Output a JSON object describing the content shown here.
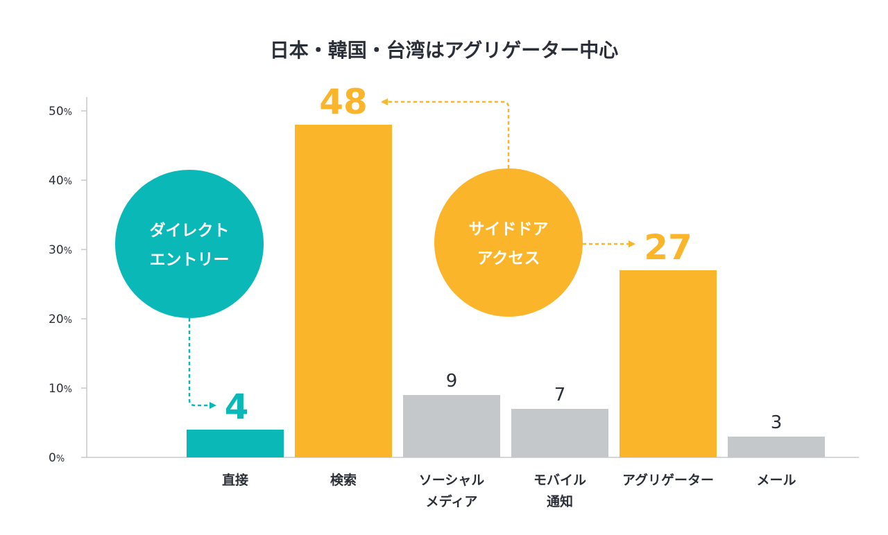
{
  "chart_data": {
    "type": "bar",
    "title": "日本・韓国・台湾はアグリゲーター中心",
    "categories": [
      "直接",
      "検索",
      "ソーシャル\nメディア",
      "モバイル\n通知",
      "アグリゲーター",
      "メール"
    ],
    "values": [
      4,
      48,
      9,
      7,
      27,
      3
    ],
    "value_labels": [
      "4",
      "48",
      "9",
      "7",
      "27",
      "3"
    ],
    "bar_colors": [
      "#0bb8b8",
      "#fbb52b",
      "#c5c8ca",
      "#c5c8ca",
      "#fbb52b",
      "#c5c8ca"
    ],
    "label_colors": [
      "#0bb8b8",
      "#fbb52b",
      "#2b2f38",
      "#2b2f38",
      "#fbb52b",
      "#2b2f38"
    ],
    "highlight": [
      true,
      true,
      false,
      false,
      true,
      false
    ],
    "ylim": [
      0,
      50
    ],
    "yticks": [
      0,
      10,
      20,
      30,
      40,
      50
    ],
    "ytick_suffix": "%",
    "grid": false,
    "xlabel": "",
    "ylabel": ""
  },
  "annotations": {
    "direct_entry": {
      "text": [
        "ダイレクト",
        "エントリー"
      ],
      "color": "#0bb8b8"
    },
    "side_door": {
      "text": [
        "サイドドア",
        "アクセス"
      ],
      "color": "#fbb52b"
    }
  },
  "colors": {
    "axis": "#c5c8ca",
    "text": "#2b2f38"
  }
}
